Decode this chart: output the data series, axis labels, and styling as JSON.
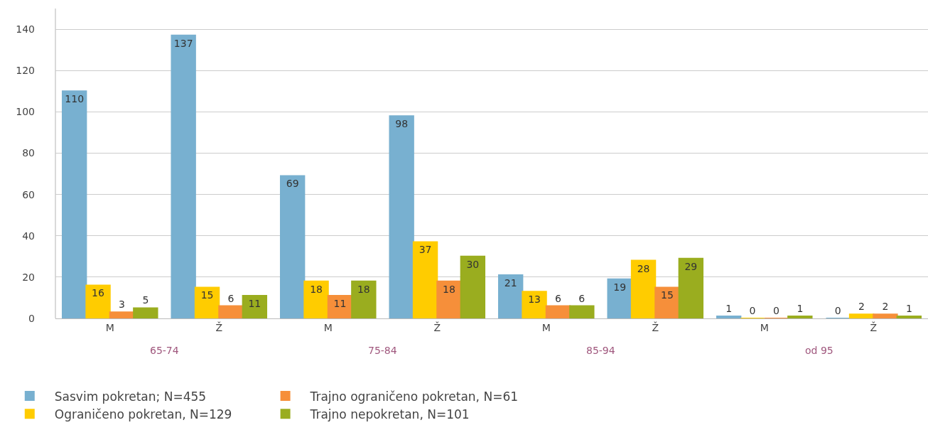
{
  "chart_data": {
    "type": "bar",
    "categories": [
      "M",
      "Ž",
      "M",
      "Ž",
      "M",
      "Ž",
      "M",
      "Ž"
    ],
    "annotations": [
      "65-74",
      "75-84",
      "85-94",
      "od 95"
    ],
    "series": [
      {
        "name": "Sasvim pokretan; N=455",
        "color": "#78b0d0",
        "values": [
          110,
          137,
          69,
          98,
          21,
          19,
          1,
          0
        ]
      },
      {
        "name": "Ograničeno pokretan, N=129",
        "color": "#ffcc00",
        "values": [
          16,
          15,
          18,
          37,
          13,
          28,
          0,
          2
        ]
      },
      {
        "name": "Trajno ograničeno pokretan, N=61",
        "color": "#f68f3a",
        "values": [
          3,
          6,
          11,
          18,
          6,
          15,
          0,
          2
        ]
      },
      {
        "name": "Trajno nepokretan, N=101",
        "color": "#9aad1f",
        "values": [
          5,
          11,
          18,
          30,
          6,
          29,
          1,
          1
        ]
      }
    ],
    "ylim": [
      0,
      150
    ],
    "yticks": [
      0,
      20,
      40,
      60,
      80,
      100,
      120,
      140
    ],
    "grid": "y",
    "legend": "bottom",
    "data_labels": true
  }
}
